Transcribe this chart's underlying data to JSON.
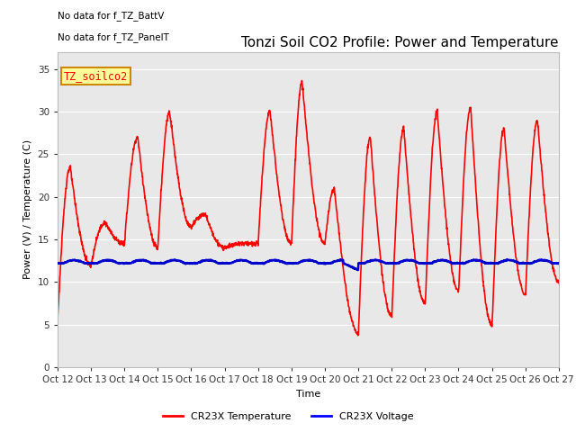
{
  "title": "Tonzi Soil CO2 Profile: Power and Temperature",
  "ylabel": "Power (V) / Temperature (C)",
  "xlabel": "Time",
  "annotation_lines": [
    "No data for f_TZ_BattV",
    "No data for f_TZ_PanelT"
  ],
  "legend_label_box": "TZ_soilco2",
  "legend_entries": [
    "CR23X Temperature",
    "CR23X Voltage"
  ],
  "legend_colors": [
    "#ff0000",
    "#0000ff"
  ],
  "ylim": [
    0,
    37
  ],
  "yticks": [
    0,
    5,
    10,
    15,
    20,
    25,
    30,
    35
  ],
  "x_tick_labels": [
    "Oct 12",
    "Oct 13",
    "Oct 14",
    "Oct 15",
    "Oct 16",
    "Oct 17",
    "Oct 18",
    "Oct 19",
    "Oct 20",
    "Oct 21",
    "Oct 22",
    "Oct 23",
    "Oct 24",
    "Oct 25",
    "Oct 26",
    "Oct 27"
  ],
  "bg_color": "#ffffff",
  "plot_bg_color": "#e8e8e8",
  "grid_color": "#ffffff",
  "temp_color": "#ff0000",
  "volt_color": "#0000cc",
  "temp_linewidth": 1.2,
  "volt_linewidth": 1.8,
  "title_fontsize": 11,
  "label_fontsize": 8,
  "tick_fontsize": 7.5,
  "annot_fontsize": 7.5,
  "legend_fontsize": 8
}
